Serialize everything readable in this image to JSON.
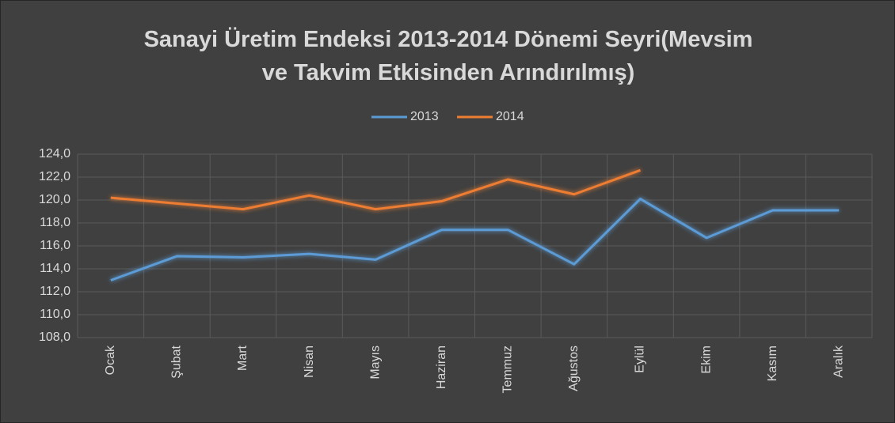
{
  "chart_data": {
    "type": "line",
    "title": "Sanayi Üretim Endeksi 2013-2014 Dönemi Seyri(Mevsim ve Takvim Etkisinden Arındırılmış)",
    "categories": [
      "Ocak",
      "Şubat",
      "Mart",
      "Nisan",
      "Mayıs",
      "Haziran",
      "Temmuz",
      "Ağustos",
      "Eylül",
      "Ekim",
      "Kasım",
      "Aralık"
    ],
    "series": [
      {
        "name": "2013",
        "color": "#5b9bd5",
        "values": [
          113.0,
          115.1,
          115.0,
          115.3,
          114.8,
          117.4,
          117.4,
          114.4,
          120.1,
          116.7,
          119.1,
          119.1
        ]
      },
      {
        "name": "2014",
        "color": "#ed7d31",
        "values": [
          120.2,
          119.7,
          119.2,
          120.4,
          119.2,
          119.9,
          121.8,
          120.5,
          122.6,
          null,
          null,
          null
        ]
      }
    ],
    "ylim": [
      108,
      124
    ],
    "yticks": [
      {
        "value": 108,
        "label": "108,0"
      },
      {
        "value": 110,
        "label": "110,0"
      },
      {
        "value": 112,
        "label": "112,0"
      },
      {
        "value": 114,
        "label": "114,0"
      },
      {
        "value": 116,
        "label": "116,0"
      },
      {
        "value": 118,
        "label": "118,0"
      },
      {
        "value": 120,
        "label": "120,0"
      },
      {
        "value": 122,
        "label": "122,0"
      },
      {
        "value": 124,
        "label": "124,0"
      }
    ],
    "grid": true,
    "legend": "top"
  }
}
